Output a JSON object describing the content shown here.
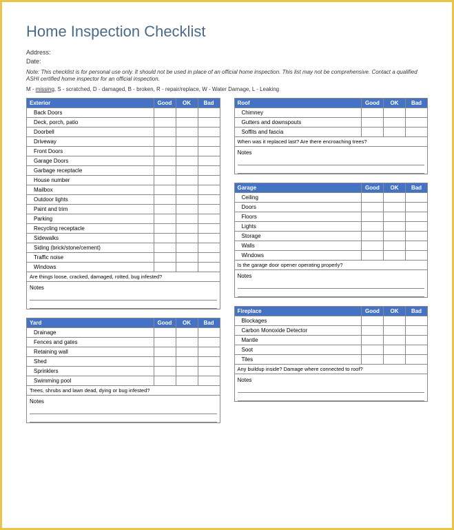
{
  "title": "Home Inspection Checklist",
  "fields": {
    "address": "Address:",
    "date": "Date:"
  },
  "note": "Note: This checklist is for personal use only. It should not be used in place of an official home inspection. This list may not be comprehensive. Contact a qualified ASHI certified home inspector for an official inspection.",
  "legend": {
    "m_label": "M - ",
    "m_word": "missing",
    "rest": ",  S - scratched,  D - damaged,  B - broken,  R - repair/replace,  W - Water Damage,  L - Leaking"
  },
  "cols": {
    "good": "Good",
    "ok": "OK",
    "bad": "Bad"
  },
  "notes_label": "Notes",
  "sections": {
    "exterior": {
      "title": "Exterior",
      "items": [
        "Back Doors",
        "Deck, porch, patio",
        "Doorbell",
        "Driveway",
        "Front Doors",
        "Garage Doors",
        "Garbage receptacle",
        "House number",
        "Mailbox",
        "Outdoor lights",
        "Paint and trim",
        "Parking",
        "Recycling receptacle",
        "Sidewalks",
        "Siding (brick/stone/cement)",
        "Traffic noise",
        "Windows"
      ],
      "question": "Are things loose, cracked, damaged, rotted, bug infested?"
    },
    "roof": {
      "title": "Roof",
      "items": [
        "Chimney",
        "Gutters and downspouts",
        "Soffits and fascia"
      ],
      "question": "When was it replaced last? Are there encroaching trees?"
    },
    "garage": {
      "title": "Garage",
      "items": [
        "Ceiling",
        "Doors",
        "Floors",
        "Lights",
        "Storage",
        "Walls",
        "Windows"
      ],
      "question": "Is the garage door opener operating properly?"
    },
    "yard": {
      "title": "Yard",
      "items": [
        "Drainage",
        "Fences and gates",
        "Retaining wall",
        "Shed",
        "Sprinklers",
        "Swimming pool"
      ],
      "question": "Trees, shrubs and lawn dead, dying or bug infested?"
    },
    "fireplace": {
      "title": "Fireplace",
      "items": [
        "Blockages",
        "Carbon Monoxide Detector",
        "Mantle",
        "Soot",
        "Tiles"
      ],
      "question": "Any buildup inside? Damage where connected to roof?"
    }
  },
  "colors": {
    "border": "#e8c548",
    "header": "#4472c4",
    "title": "#4a6a8a"
  }
}
